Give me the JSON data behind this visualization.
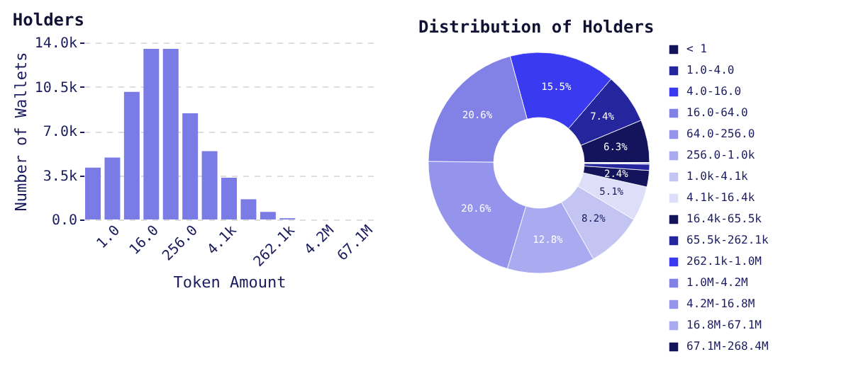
{
  "chart_data": [
    {
      "type": "bar",
      "title": "Holders",
      "xlabel": "Token Amount",
      "ylabel": "Number of Wallets",
      "categories": [
        null,
        "1.0",
        null,
        "16.0",
        null,
        "256.0",
        null,
        "4.1k",
        null,
        null,
        "262.1k",
        null,
        "4.2M",
        null,
        "67.1M"
      ],
      "values": [
        4100,
        4900,
        10100,
        13500,
        13500,
        8400,
        5400,
        3300,
        1600,
        600,
        100,
        0,
        0,
        0,
        0
      ],
      "color": "#7b7be6",
      "ylim": [
        0,
        14000
      ],
      "yticks": [
        {
          "value": 0,
          "label": "0.0"
        },
        {
          "value": 3500,
          "label": "3.5k"
        },
        {
          "value": 7000,
          "label": "7.0k"
        },
        {
          "value": 10500,
          "label": "10.5k"
        },
        {
          "value": 14000,
          "label": "14.0k"
        }
      ],
      "grid": "y"
    },
    {
      "type": "donut",
      "title": "Distribution of Holders",
      "categories": [
        "< 1",
        "1.0-4.0",
        "4.0-16.0",
        "16.0-64.0",
        "64.0-256.0",
        "256.0-1.0k",
        "1.0k-4.1k",
        "4.1k-16.4k",
        "16.4k-65.5k",
        "65.5k-262.1k",
        "262.1k-1.0M",
        "1.0M-4.2M",
        "4.2M-16.8M",
        "16.8M-67.1M",
        "67.1M-268.4M"
      ],
      "values": [
        6.3,
        7.4,
        15.5,
        20.6,
        20.6,
        12.8,
        8.2,
        5.1,
        2.4,
        0.9,
        0.2,
        0,
        0,
        0,
        0
      ],
      "value_labels": [
        "6.3%",
        "7.4%",
        "15.5%",
        "20.6%",
        "20.6%",
        "12.8%",
        "8.2%",
        "5.1%",
        "2.4%",
        null,
        null,
        null,
        null,
        null,
        null
      ],
      "colors": [
        "#14145c",
        "#25259e",
        "#3a3af0",
        "#8181e6",
        "#9494ec",
        "#aaaaf0",
        "#c4c4f2",
        "#dedef8",
        "#14145c",
        "#25259e",
        "#3a3af0",
        "#8181e6",
        "#9494ec",
        "#aaaaf0",
        "#14145c"
      ],
      "legend": "right"
    }
  ]
}
